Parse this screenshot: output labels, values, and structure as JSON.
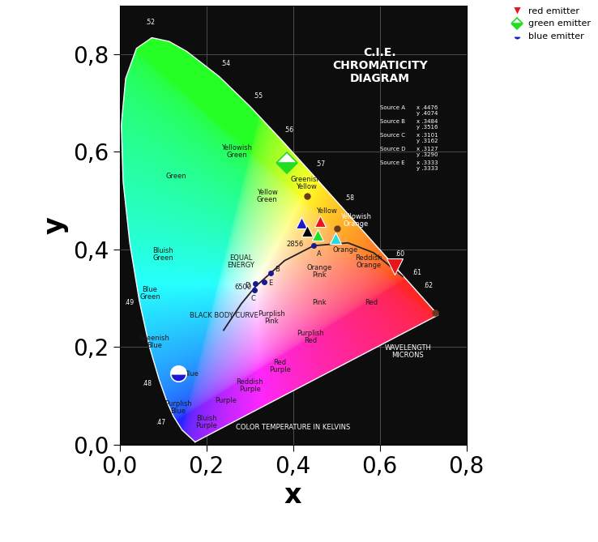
{
  "chart_data": {
    "type": "scatter",
    "title": "C.I.E.\nCHROMATICITY\nDIAGRAM",
    "x_label": "x",
    "y_label": "y",
    "xlim": [
      0,
      0.8
    ],
    "ylim": [
      0,
      0.9
    ],
    "xticks": [
      {
        "value": 0,
        "label": "0,0"
      },
      {
        "value": 0.2,
        "label": "0,2"
      },
      {
        "value": 0.4,
        "label": "0,4"
      },
      {
        "value": 0.6,
        "label": "0,6"
      },
      {
        "value": 0.8,
        "label": "0,8"
      }
    ],
    "yticks": [
      {
        "value": 0,
        "label": "0,0"
      },
      {
        "value": 0.2,
        "label": "0,2"
      },
      {
        "value": 0.4,
        "label": "0,4"
      },
      {
        "value": 0.6,
        "label": "0,6"
      },
      {
        "value": 0.8,
        "label": "0,8"
      }
    ],
    "grid": true,
    "legend": "upper right",
    "series": [
      {
        "name": "red emitter",
        "color": "#e8141c",
        "marker": "triangle_down",
        "x": [
          0.635
        ],
        "y": [
          0.365
        ]
      },
      {
        "name": "green emitter",
        "color": "#22dd22",
        "marker": "diamond",
        "x": [
          0.385
        ],
        "y": [
          0.577
        ]
      },
      {
        "name": "blue emitter",
        "color": "#1a1ad0",
        "marker": "circle",
        "x": [
          0.135
        ],
        "y": [
          0.145
        ]
      },
      {
        "color": "#1a1ad0",
        "marker": "triangle_up",
        "x": [
          0.42
        ],
        "y": [
          0.455
        ]
      },
      {
        "color": "#e8141c",
        "marker": "triangle_up",
        "x": [
          0.462
        ],
        "y": [
          0.458
        ]
      },
      {
        "color": "#000000",
        "marker": "triangle_up",
        "x": [
          0.432
        ],
        "y": [
          0.437
        ]
      },
      {
        "color": "#22dd22",
        "marker": "triangle_up",
        "x": [
          0.456
        ],
        "y": [
          0.43
        ]
      },
      {
        "color": "#22dddd",
        "marker": "triangle_up",
        "x": [
          0.497
        ],
        "y": [
          0.422
        ]
      },
      {
        "color": "#6b3a1e",
        "marker": "dot",
        "x": [
          0.432,
          0.502,
          0.728
        ],
        "y": [
          0.51,
          0.443,
          0.27
        ]
      }
    ],
    "spectral_locus": {
      "x": [
        0.1741,
        0.144,
        0.1241,
        0.1096,
        0.0913,
        0.0687,
        0.0454,
        0.0235,
        0.0082,
        0.0039,
        0.0139,
        0.0389,
        0.0743,
        0.1142,
        0.1547,
        0.2296,
        0.3016,
        0.3731,
        0.4441,
        0.5125,
        0.5752,
        0.627,
        0.6658,
        0.6915,
        0.719,
        0.7347
      ],
      "y": [
        0.005,
        0.0297,
        0.0578,
        0.0868,
        0.1327,
        0.2007,
        0.295,
        0.4127,
        0.5384,
        0.6548,
        0.7502,
        0.812,
        0.8338,
        0.8262,
        0.8059,
        0.7543,
        0.6923,
        0.6245,
        0.5547,
        0.4866,
        0.4242,
        0.3725,
        0.334,
        0.3083,
        0.2809,
        0.2653
      ]
    },
    "black_body_curve": {
      "x": [
        0.6528,
        0.5857,
        0.5267,
        0.4476,
        0.3805,
        0.3135,
        0.2807,
        0.2399
      ],
      "y": [
        0.3444,
        0.3931,
        0.4133,
        0.4074,
        0.3768,
        0.3237,
        0.2884,
        0.2342
      ]
    },
    "sources": [
      {
        "name": "Source A",
        "x": 0.4476,
        "y": 0.4074,
        "x_label": "x .4476",
        "y_label": "y .4074",
        "point_label": "A"
      },
      {
        "name": "Source B",
        "x": 0.3484,
        "y": 0.3516,
        "x_label": "x .3484",
        "y_label": "y .3516",
        "point_label": "B"
      },
      {
        "name": "Source C",
        "x": 0.3101,
        "y": 0.3162,
        "x_label": "x .3101",
        "y_label": "y .3162",
        "point_label": "C"
      },
      {
        "name": "Source D",
        "x": 0.3127,
        "y": 0.329,
        "x_label": "x .3127",
        "y_label": "y .3290",
        "point_label": "D"
      },
      {
        "name": "Source E",
        "x": 0.3333,
        "y": 0.3333,
        "x_label": "x .3333",
        "y_label": "y .3333",
        "point_label": "E"
      }
    ],
    "annotations": [
      {
        "text": "Green",
        "x": 0.13,
        "y": 0.55
      },
      {
        "text": "Yellowish\nGreen",
        "x": 0.27,
        "y": 0.6
      },
      {
        "text": "Yellow\nGreen",
        "x": 0.34,
        "y": 0.51
      },
      {
        "text": "Greenish\nYellow",
        "x": 0.43,
        "y": 0.535
      },
      {
        "text": "Yellow",
        "x": 0.478,
        "y": 0.478
      },
      {
        "text": "Yellowish\nOrange",
        "x": 0.545,
        "y": 0.46
      },
      {
        "text": "Orange",
        "x": 0.52,
        "y": 0.398
      },
      {
        "text": "Reddish\nOrange",
        "x": 0.575,
        "y": 0.375
      },
      {
        "text": "Orange\nPink",
        "x": 0.46,
        "y": 0.355
      },
      {
        "text": "Pink",
        "x": 0.46,
        "y": 0.29
      },
      {
        "text": "Red",
        "x": 0.58,
        "y": 0.29
      },
      {
        "text": "Purplish\nPink",
        "x": 0.35,
        "y": 0.26
      },
      {
        "text": "Purplish\nRed",
        "x": 0.44,
        "y": 0.22
      },
      {
        "text": "Red\nPurple",
        "x": 0.37,
        "y": 0.16
      },
      {
        "text": "Reddish\nPurple",
        "x": 0.3,
        "y": 0.12
      },
      {
        "text": "Purple",
        "x": 0.245,
        "y": 0.09
      },
      {
        "text": "Bluish\nPurple",
        "x": 0.2,
        "y": 0.045
      },
      {
        "text": "Purplish\nBlue",
        "x": 0.135,
        "y": 0.075
      },
      {
        "text": "Blue",
        "x": 0.165,
        "y": 0.145
      },
      {
        "text": "Greenish\nBlue",
        "x": 0.08,
        "y": 0.21
      },
      {
        "text": "Blue\nGreen",
        "x": 0.07,
        "y": 0.31
      },
      {
        "text": "Bluish\nGreen",
        "x": 0.1,
        "y": 0.39
      },
      {
        "text": "EQUAL\nENERGY",
        "x": 0.28,
        "y": 0.375
      },
      {
        "text": "6500",
        "x": 0.285,
        "y": 0.322
      },
      {
        "text": "2856",
        "x": 0.405,
        "y": 0.41
      },
      {
        "text": "BLACK BODY CURVE",
        "x": 0.24,
        "y": 0.265
      },
      {
        "text": "WAVELENGTH\nMICRONS",
        "x": 0.665,
        "y": 0.19
      },
      {
        "text": "COLOR TEMPERATURE IN KELVINS",
        "x": 0.4,
        "y": 0.035
      }
    ],
    "wavelength_labels": [
      {
        "text": ".52",
        "x": 0.07,
        "y": 0.865
      },
      {
        "text": ".54",
        "x": 0.245,
        "y": 0.78
      },
      {
        "text": ".55",
        "x": 0.318,
        "y": 0.715
      },
      {
        "text": ".56",
        "x": 0.39,
        "y": 0.645
      },
      {
        "text": ".57",
        "x": 0.462,
        "y": 0.575
      },
      {
        "text": ".58",
        "x": 0.53,
        "y": 0.505
      },
      {
        "text": ".60",
        "x": 0.645,
        "y": 0.39
      },
      {
        "text": ".61",
        "x": 0.685,
        "y": 0.352
      },
      {
        "text": ".62",
        "x": 0.712,
        "y": 0.325
      },
      {
        "text": ".49",
        "x": 0.022,
        "y": 0.29
      },
      {
        "text": ".48",
        "x": 0.062,
        "y": 0.125
      },
      {
        "text": ".47",
        "x": 0.095,
        "y": 0.045
      }
    ]
  }
}
